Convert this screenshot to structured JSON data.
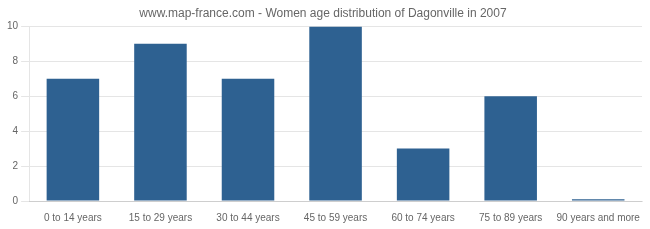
{
  "chart_data": {
    "type": "bar",
    "title": "www.map-france.com - Women age distribution of Dagonville in 2007",
    "categories": [
      "0 to 14 years",
      "15 to 29 years",
      "30 to 44 years",
      "45 to 59 years",
      "60 to 74 years",
      "75 to 89 years",
      "90 years and more"
    ],
    "values": [
      7,
      9,
      7,
      10,
      3,
      6,
      0.1
    ],
    "color": "#2e6191",
    "ylim": [
      0,
      10
    ],
    "yticks": [
      0,
      2,
      4,
      6,
      8,
      10
    ],
    "grid": true
  }
}
